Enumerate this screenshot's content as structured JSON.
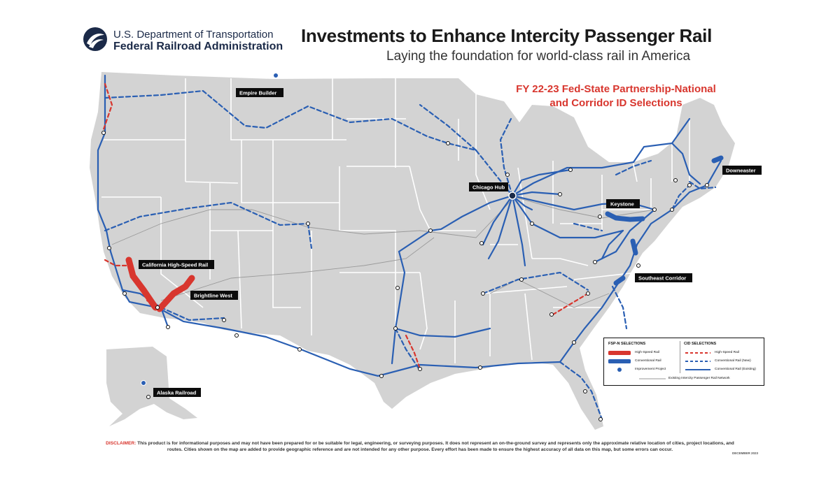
{
  "header": {
    "agency_line1": "U.S. Department of Transportation",
    "agency_line2": "Federal Railroad Administration",
    "title": "Investments to Enhance Intercity Passenger Rail",
    "subtitle": "Laying the foundation for world-class rail in America",
    "selection_title_line1": "FY 22-23 Fed-State Partnership-National",
    "selection_title_line2": "and Corridor ID Selections"
  },
  "map_labels": {
    "empire_builder": "Empire Builder",
    "chicago_hub": "Chicago Hub",
    "keystone": "Keystone",
    "downeaster": "Downeaster",
    "california_hsr": "California High-Speed Rail",
    "brightline_west": "Brightline West",
    "southeast_corridor": "Southeast Corridor",
    "alaska_railroad": "Alaska Railroad"
  },
  "legend": {
    "fspn_heading": "FSP-N SELECTIONS",
    "fspn_high_speed": "High-Speed Rail",
    "fspn_conventional": "Conventional Rail",
    "fspn_improvement": "Improvement Project",
    "cid_heading": "CID SELECTIONS",
    "cid_high_speed": "High-Speed Rail",
    "cid_conventional_new": "Conventional Rail (New)",
    "cid_conventional_existing": "Conventional Rail (Existing)",
    "existing_network": "Existing Intercity Passenger Rail Network"
  },
  "colors": {
    "land": "#d3d3d3",
    "state_border": "#ffffff",
    "rail_blue": "#2a5fb3",
    "high_speed_red": "#d8362e",
    "existing_network_grey": "#9a9a9a",
    "title_red": "#d8362e"
  },
  "disclaimer": {
    "label": "DISCLAIMER:",
    "text": "This product is for informational purposes and may not have been prepared for or be suitable for legal, engineering, or surveying purposes. It does not represent an on-the-ground survey and represents only the approximate relative location of cities, project locations, and routes. Cities shown on the map are added to provide geographic reference and are not intended for any other purpose. Every effort has been made to ensure the highest accuracy of all data on this map, but some errors can occur."
  },
  "date_stamp": "DECEMBER 2023"
}
